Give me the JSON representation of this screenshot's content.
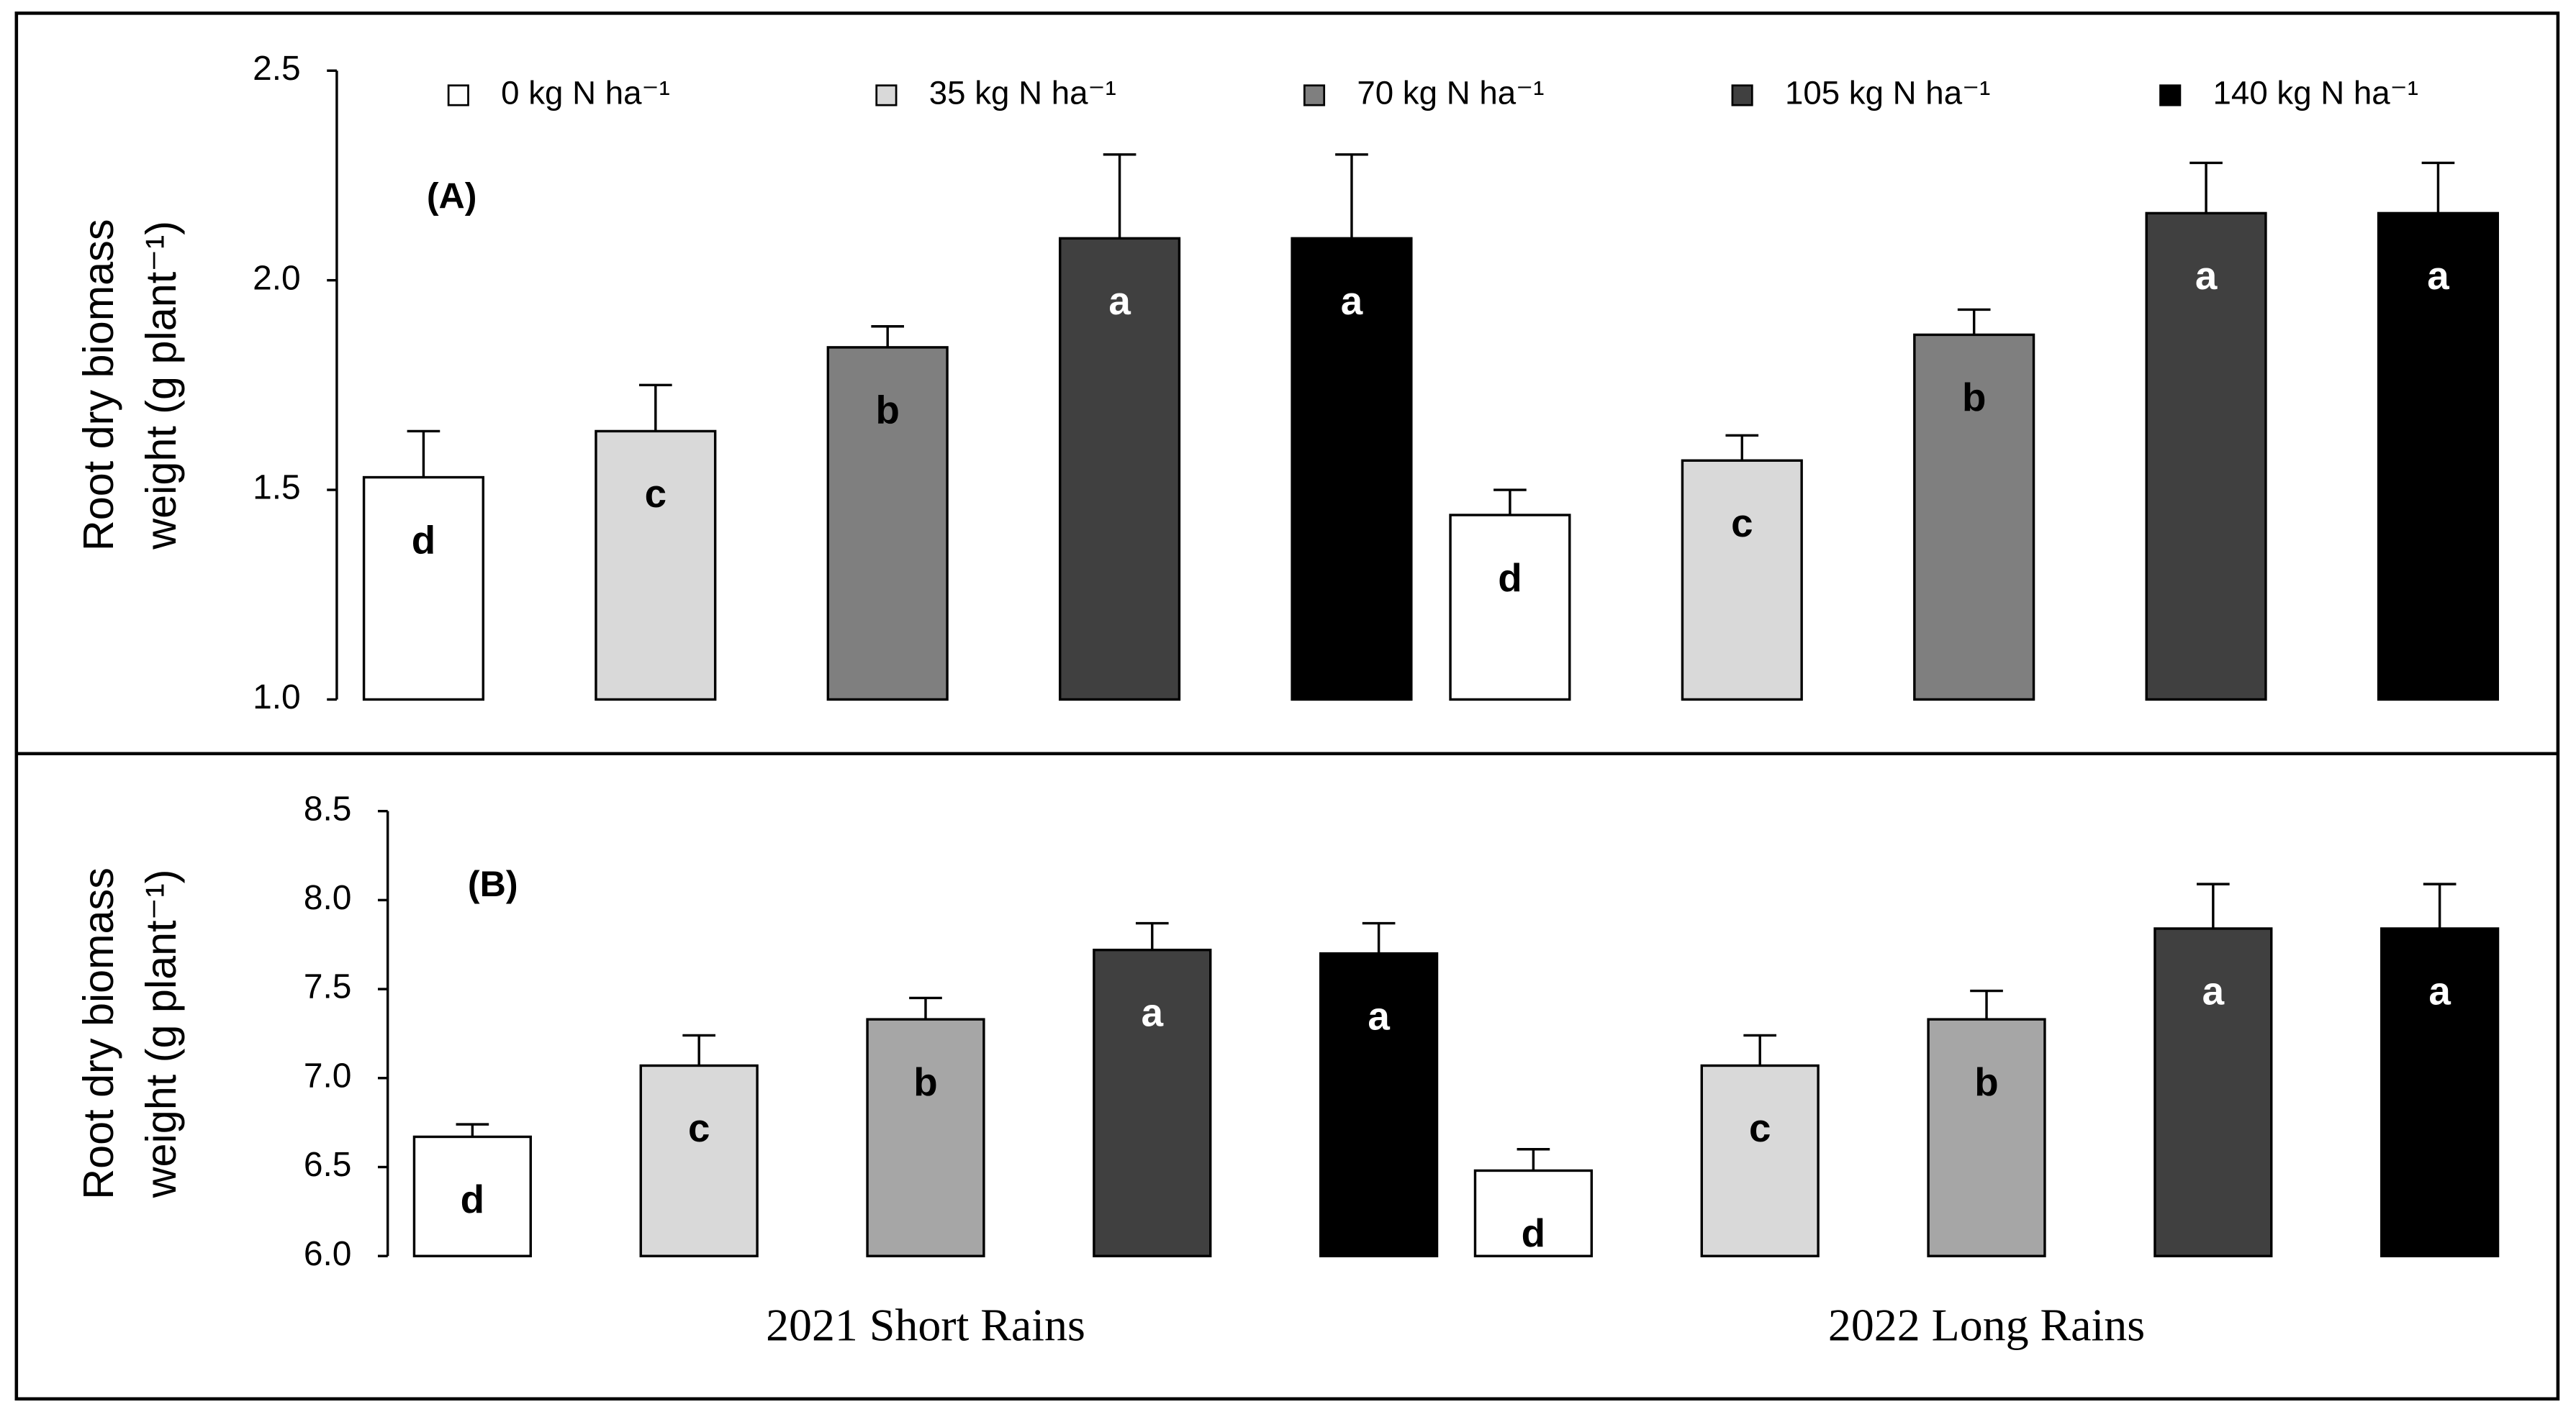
{
  "chart_data": [
    {
      "type": "bar",
      "panel_label": "(A)",
      "ylabel": [
        "Root dry biomass",
        "weight (g plant⁻¹)"
      ],
      "ylim": [
        1.0,
        2.5
      ],
      "yticks": [
        {
          "value": 1.0,
          "label": "1.0"
        },
        1.5,
        {
          "value": 2.0,
          "label": "2.0"
        },
        2.5
      ],
      "series": [
        {
          "name": "0 kg N ha⁻¹",
          "color": "#ffffff",
          "values": [
            1.53,
            1.44
          ],
          "errors": [
            0.11,
            0.06
          ],
          "letters": [
            "d",
            "d"
          ]
        },
        {
          "name": "35 kg N ha⁻¹",
          "color": "#d9d9d9",
          "values": [
            1.64,
            1.57
          ],
          "errors": [
            0.11,
            0.06
          ],
          "letters": [
            "c",
            "c"
          ]
        },
        {
          "name": "70 kg N ha⁻¹",
          "color": "#7f7f7f",
          "values": [
            1.84,
            1.87
          ],
          "errors": [
            0.05,
            0.06
          ],
          "letters": [
            "b",
            "b"
          ]
        },
        {
          "name": "105 kg N ha⁻¹",
          "color": "#404040",
          "values": [
            2.1,
            2.16
          ],
          "errors": [
            0.2,
            0.12
          ],
          "letters": [
            "a",
            "a"
          ]
        },
        {
          "name": "140 kg N ha⁻¹",
          "color": "#000000",
          "values": [
            2.1,
            2.16
          ],
          "errors": [
            0.2,
            0.12
          ],
          "letters": [
            "a",
            "a"
          ]
        }
      ]
    },
    {
      "type": "bar",
      "panel_label": "(B)",
      "ylabel": [
        "Root dry biomass",
        "weight (g plant⁻¹)"
      ],
      "categories": [
        "2021 Short Rains",
        "2022 Long Rains"
      ],
      "ylim": [
        6.0,
        8.5
      ],
      "yticks": [
        {
          "value": 6.0,
          "label": "6.0"
        },
        6.5,
        {
          "value": 7.0,
          "label": "7.0"
        },
        7.5,
        {
          "value": 8.0,
          "label": "8.0"
        },
        8.5
      ],
      "series": [
        {
          "color": "#ffffff",
          "values": [
            6.67,
            6.48
          ],
          "errors": [
            0.07,
            0.12
          ],
          "letters": [
            "d",
            "d"
          ]
        },
        {
          "color": "#d9d9d9",
          "values": [
            7.07,
            7.07
          ],
          "errors": [
            0.17,
            0.17
          ],
          "letters": [
            "c",
            "c"
          ]
        },
        {
          "color": "#a6a6a6",
          "values": [
            7.33,
            7.33
          ],
          "errors": [
            0.12,
            0.16
          ],
          "letters": [
            "b",
            "b"
          ]
        },
        {
          "color": "#404040",
          "values": [
            7.72,
            7.84
          ],
          "errors": [
            0.15,
            0.25
          ],
          "letters": [
            "a",
            "a"
          ]
        },
        {
          "color": "#000000",
          "values": [
            7.7,
            7.84
          ],
          "errors": [
            0.17,
            0.25
          ],
          "letters": [
            "a",
            "a"
          ]
        }
      ]
    }
  ]
}
